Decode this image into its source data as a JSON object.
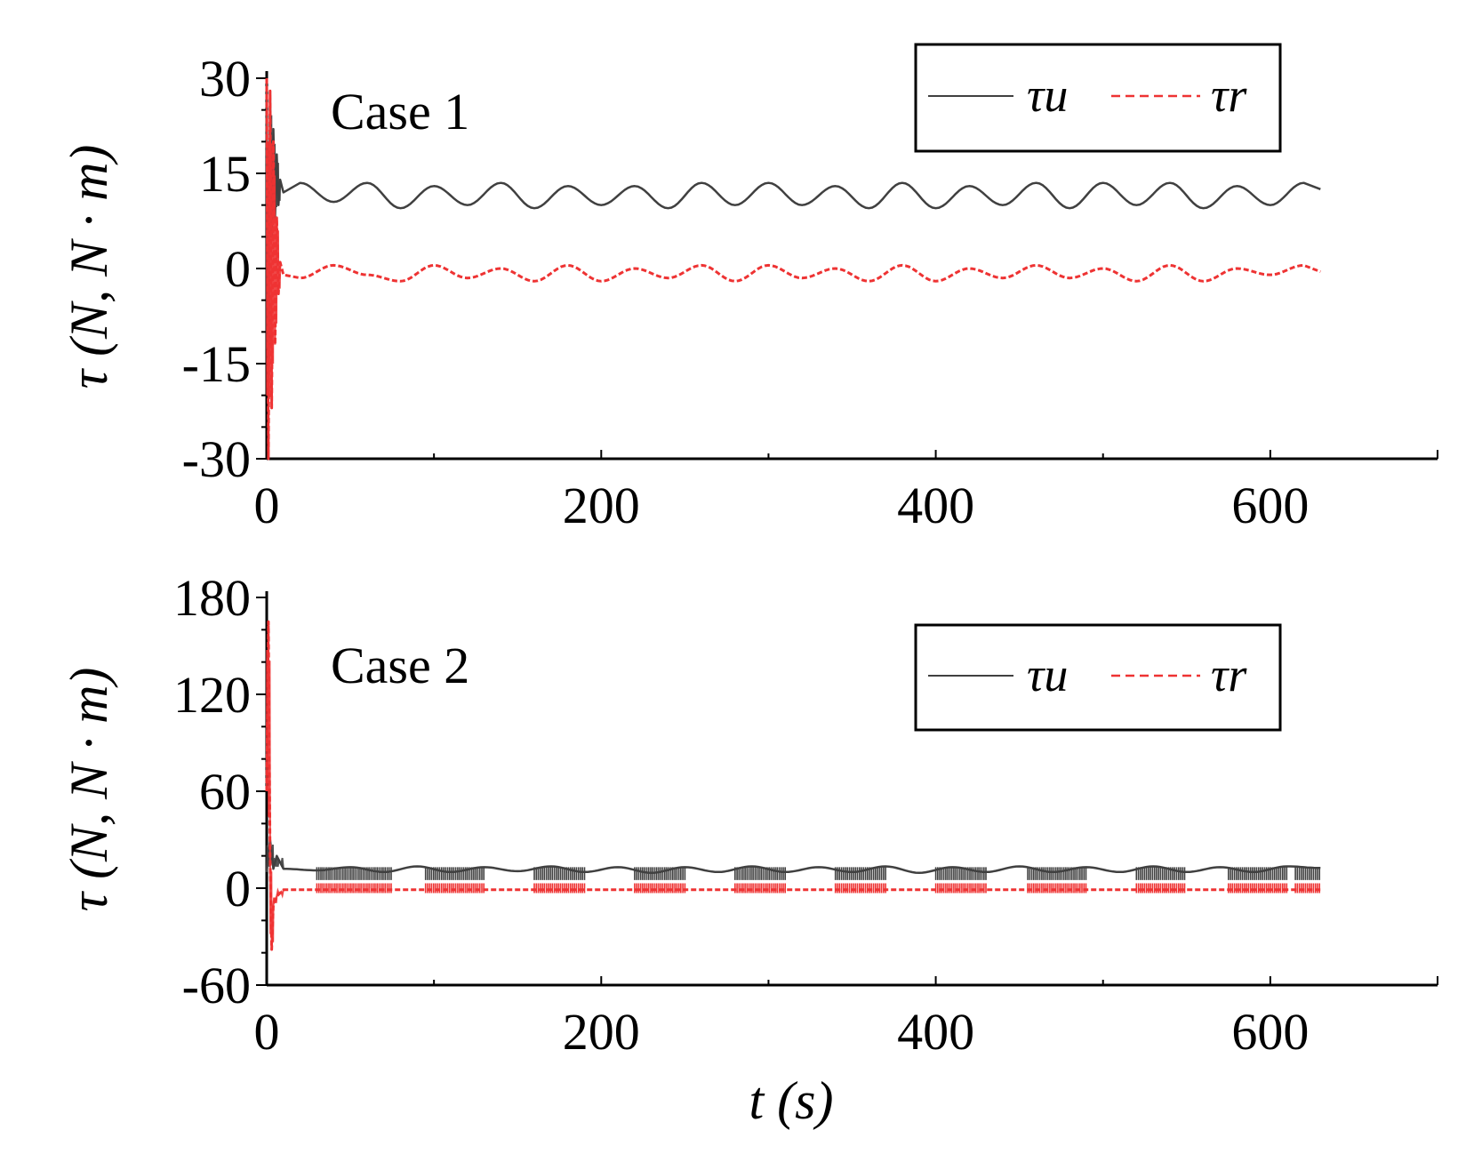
{
  "colors": {
    "tau_u": "#404040",
    "tau_r": "#ee3333",
    "axis": "#000000"
  },
  "y_axis_title": "τ (N, N · m)",
  "x_axis_title": "t (s)",
  "chart_data": [
    {
      "type": "line",
      "panel_label": "Case 1",
      "xlim": [
        0,
        700
      ],
      "ylim": [
        -30,
        30
      ],
      "x_ticks": [
        "0",
        "200",
        "400",
        "600"
      ],
      "y_ticks": [
        "-30",
        "-15",
        "0",
        "15",
        "30"
      ],
      "xlabel": "",
      "ylabel": "τ (N, N · m)",
      "legend": {
        "position": "top-right",
        "entries": [
          "τu",
          "τr"
        ]
      },
      "series": [
        {
          "name": "τu",
          "style": "solid",
          "color": "#404040",
          "description": "initial transient oscillating between about -23 and 30 during t < 8, then a sinusoid between about 9 and 14 (period ~32 s) until t ≈ 630",
          "x": [
            0,
            1,
            2,
            3,
            4,
            5,
            6,
            7,
            8,
            10,
            20,
            40,
            60,
            80,
            100,
            120,
            140,
            160,
            180,
            200,
            220,
            240,
            260,
            280,
            300,
            320,
            340,
            360,
            380,
            400,
            420,
            440,
            460,
            480,
            500,
            520,
            540,
            560,
            580,
            600,
            620,
            630
          ],
          "y": [
            24,
            -20,
            28,
            5,
            22,
            8,
            18,
            10,
            14,
            12,
            13.5,
            10.5,
            13.5,
            9.5,
            13,
            10,
            13.5,
            9.5,
            13,
            10,
            13,
            9.5,
            13.5,
            10,
            13.5,
            10,
            13,
            9.5,
            13.5,
            9.5,
            13,
            10,
            13.5,
            9.5,
            13.5,
            10,
            13.5,
            9.5,
            13,
            10,
            13.5,
            12.5
          ]
        },
        {
          "name": "τr",
          "style": "dashed",
          "color": "#ee3333",
          "description": "initial transient between about -30 and 30 during t < 8, then a small sinusoid between about -2 and 0.5 until t ≈ 630",
          "x": [
            0,
            1,
            2,
            3,
            4,
            5,
            6,
            7,
            8,
            10,
            20,
            40,
            60,
            80,
            100,
            120,
            140,
            160,
            180,
            200,
            220,
            240,
            260,
            280,
            300,
            320,
            340,
            360,
            380,
            400,
            420,
            440,
            460,
            480,
            500,
            520,
            540,
            560,
            580,
            600,
            620,
            630
          ],
          "y": [
            30,
            -30,
            28,
            -22,
            20,
            -12,
            8,
            -4,
            1,
            -1,
            -1.5,
            0.5,
            -1,
            -2,
            0.5,
            -1.5,
            0,
            -2,
            0.5,
            -2,
            0,
            -1.5,
            0.5,
            -2,
            0.5,
            -1.5,
            0,
            -2,
            0.5,
            -2,
            0,
            -1.5,
            0.5,
            -1.5,
            0,
            -2,
            0.5,
            -2,
            0,
            -1,
            0.5,
            -0.5
          ]
        }
      ]
    },
    {
      "type": "line",
      "panel_label": "Case 2",
      "xlim": [
        0,
        700
      ],
      "ylim": [
        -60,
        180
      ],
      "x_ticks": [
        "0",
        "200",
        "400",
        "600"
      ],
      "y_ticks": [
        "-60",
        "0",
        "60",
        "120",
        "180"
      ],
      "xlabel": "t (s)",
      "ylabel": "τ (N, N · m)",
      "legend": {
        "position": "top-right",
        "entries": [
          "τu",
          "τr"
        ]
      },
      "series": [
        {
          "name": "τu",
          "style": "solid",
          "color": "#404040",
          "description": "spike near 30 at t ≈ 2, then a sinusoid between about 9 and 14 with intermittent dense chattering bursts down to about 5 until t ≈ 630",
          "x": [
            0,
            2,
            4,
            6,
            10,
            30,
            50,
            70,
            90,
            110,
            130,
            150,
            170,
            190,
            210,
            230,
            250,
            270,
            290,
            310,
            330,
            350,
            370,
            390,
            410,
            430,
            450,
            470,
            490,
            510,
            530,
            550,
            570,
            590,
            610,
            630
          ],
          "y": [
            10,
            30,
            12,
            20,
            12,
            11,
            13,
            10,
            13.5,
            10,
            13,
            10.5,
            13.5,
            10,
            13,
            9.5,
            13,
            10,
            13.5,
            10,
            13,
            10,
            13.5,
            9.5,
            13,
            10,
            13.5,
            10,
            13,
            10,
            13.5,
            10,
            13,
            10,
            13.5,
            12.5
          ],
          "chatter_windows": [
            [
              30,
              75
            ],
            [
              95,
              130
            ],
            [
              160,
              190
            ],
            [
              220,
              250
            ],
            [
              280,
              310
            ],
            [
              340,
              370
            ],
            [
              400,
              430
            ],
            [
              455,
              490
            ],
            [
              520,
              550
            ],
            [
              575,
              610
            ],
            [
              615,
              630
            ]
          ],
          "chatter_min": 5
        },
        {
          "name": "τr",
          "style": "dashed",
          "color": "#ee3333",
          "description": "large spike up to about 165 at t ≈ 1 and dip to about -38 near t ≈ 3, then stays near -1 with dense chattering bursts between about -3 and 3 until t ≈ 630",
          "x": [
            0,
            1,
            2,
            3,
            4,
            6,
            10,
            30,
            100,
            200,
            300,
            400,
            500,
            600,
            630
          ],
          "y": [
            60,
            165,
            20,
            -38,
            -10,
            -5,
            -1,
            -1,
            -1,
            -1,
            -1,
            -1,
            -1,
            -1,
            -1
          ],
          "chatter_windows": [
            [
              30,
              75
            ],
            [
              95,
              130
            ],
            [
              160,
              190
            ],
            [
              220,
              250
            ],
            [
              280,
              310
            ],
            [
              340,
              370
            ],
            [
              400,
              430
            ],
            [
              455,
              490
            ],
            [
              520,
              550
            ],
            [
              575,
              610
            ],
            [
              615,
              630
            ]
          ],
          "chatter_min": -3,
          "chatter_max": 3
        }
      ]
    }
  ]
}
